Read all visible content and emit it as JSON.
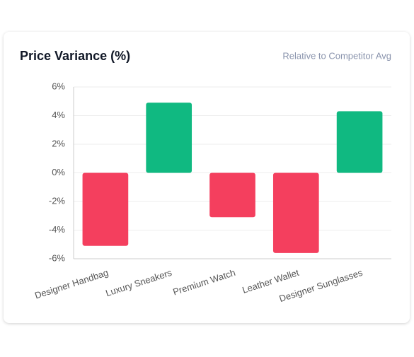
{
  "chart_data": {
    "type": "bar",
    "title": "Price Variance (%)",
    "subtitle": "Relative to Competitor Avg",
    "categories": [
      "Designer Handbag",
      "Luxury Sneakers",
      "Premium Watch",
      "Leather Wallet",
      "Designer Sunglasses"
    ],
    "values": [
      -5.1,
      4.9,
      -3.1,
      -5.6,
      4.3
    ],
    "positive_color": "#10b981",
    "negative_color": "#f43f5e",
    "ylim": [
      -6,
      6
    ],
    "yticks": [
      {
        "value": -6,
        "label": "-6%"
      },
      {
        "value": -4,
        "label": "-4%"
      },
      {
        "value": -2,
        "label": "-2%"
      },
      {
        "value": 0,
        "label": "0%"
      },
      {
        "value": 2,
        "label": "2%"
      },
      {
        "value": 4,
        "label": "4%"
      },
      {
        "value": 6,
        "label": "6%"
      }
    ],
    "grid": true
  }
}
